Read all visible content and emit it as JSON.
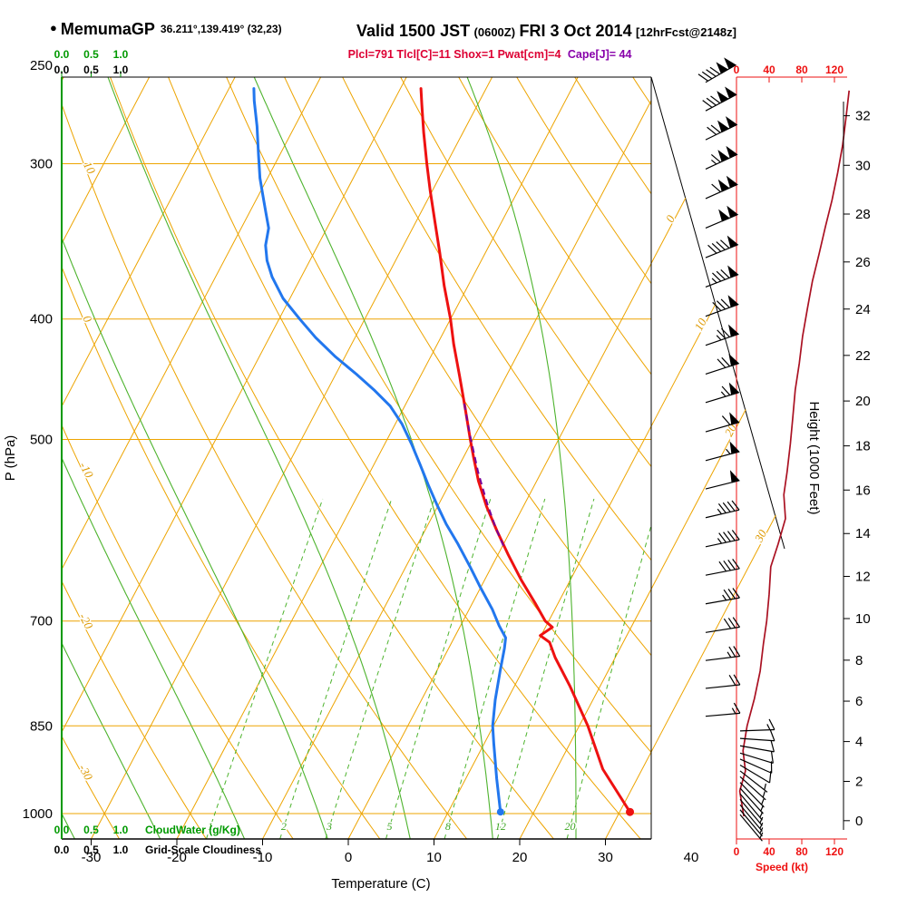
{
  "header": {
    "bullet": "●",
    "station": "MemumaGP",
    "coords": "36.211°,139.419° (32,23)",
    "valid_main": "Valid 1500 JST",
    "valid_z": "(0600Z)",
    "valid_date": "FRI 3 Oct 2014",
    "fcst": "[12hrFcst@2148z]",
    "indices_left": "Plcl=791 Tlcl[C]=11 Shox=1 Pwat[cm]=4",
    "indices_cape": "Cape[J]= 44"
  },
  "axes": {
    "pressure": {
      "title": "P (hPa)",
      "ticks": [
        250,
        300,
        400,
        500,
        700,
        850,
        1000
      ]
    },
    "temperature": {
      "title": "Temperature (C)",
      "ticks": [
        -30,
        -20,
        -10,
        0,
        10,
        20,
        30,
        40
      ]
    },
    "height": {
      "title": "Height (1000 Feet)",
      "ticks": [
        0,
        2,
        4,
        6,
        8,
        10,
        12,
        14,
        16,
        18,
        20,
        22,
        24,
        26,
        28,
        30,
        32
      ]
    },
    "speed": {
      "title": "Speed (kt)",
      "ticks": [
        0,
        40,
        80,
        120
      ]
    },
    "cloudwater": {
      "title": "CloudWater (g/Kg)",
      "ticks": [
        "0.0",
        "0.5",
        "1.0"
      ]
    },
    "cloudiness": {
      "title": "Grid-Scale Cloudiness",
      "ticks": [
        "0.0",
        "0.5",
        "1.0"
      ]
    }
  },
  "grid": {
    "isotherms": {
      "start": -80,
      "end": 30,
      "step": 10,
      "right_labels": [
        0,
        10,
        20,
        30
      ]
    },
    "dry_adiabats": {
      "values": [
        -30,
        -20,
        -10,
        0,
        10,
        20,
        30,
        40,
        50,
        60,
        70,
        80,
        90,
        100,
        110
      ],
      "labels": [
        10,
        0,
        -10,
        -20,
        -30
      ]
    },
    "moist_adiabats": {
      "values": [
        -45,
        -35,
        -25,
        -15,
        -5,
        5,
        15,
        25,
        35
      ]
    },
    "mixing_ratio": {
      "values": [
        1,
        2,
        3,
        5,
        8,
        12,
        20
      ]
    },
    "pressure_lines": [
      300,
      400,
      500,
      700,
      850,
      1000
    ]
  },
  "chart_data": {
    "type": "skewt-logp",
    "pressure_range_hpa": [
      1048,
      253
    ],
    "temperature_c": [
      [
        997,
        31.2
      ],
      [
        921,
        25.4
      ],
      [
        850,
        21.0
      ],
      [
        790,
        16.5
      ],
      [
        749,
        13.0
      ],
      [
        728,
        11.4
      ],
      [
        719,
        9.9
      ],
      [
        708,
        10.8
      ],
      [
        700,
        9.6
      ],
      [
        677,
        7.3
      ],
      [
        649,
        4.3
      ],
      [
        619,
        1.2
      ],
      [
        592,
        -1.6
      ],
      [
        566,
        -4.3
      ],
      [
        540,
        -6.8
      ],
      [
        517,
        -8.8
      ],
      [
        500,
        -10.3
      ],
      [
        472,
        -12.8
      ],
      [
        445,
        -15.4
      ],
      [
        419,
        -18.1
      ],
      [
        400,
        -20.0
      ],
      [
        376,
        -22.8
      ],
      [
        354,
        -25.3
      ],
      [
        334,
        -27.8
      ],
      [
        315,
        -30.3
      ],
      [
        300,
        -32.3
      ],
      [
        283,
        -34.6
      ],
      [
        269,
        -36.5
      ],
      [
        261,
        -37.6
      ]
    ],
    "dewpoint_c": [
      [
        997,
        16.1
      ],
      [
        937,
        13.6
      ],
      [
        878,
        11.1
      ],
      [
        850,
        9.9
      ],
      [
        810,
        8.6
      ],
      [
        768,
        7.4
      ],
      [
        736,
        6.5
      ],
      [
        722,
        6.0
      ],
      [
        706,
        4.5
      ],
      [
        685,
        2.7
      ],
      [
        658,
        0.0
      ],
      [
        633,
        -2.5
      ],
      [
        607,
        -5.3
      ],
      [
        585,
        -7.9
      ],
      [
        565,
        -10.1
      ],
      [
        544,
        -12.4
      ],
      [
        523,
        -14.7
      ],
      [
        504,
        -16.9
      ],
      [
        486,
        -19.2
      ],
      [
        470,
        -21.7
      ],
      [
        456,
        -24.6
      ],
      [
        443,
        -27.6
      ],
      [
        429,
        -31.1
      ],
      [
        414,
        -34.6
      ],
      [
        400,
        -37.6
      ],
      [
        385,
        -40.8
      ],
      [
        370,
        -43.4
      ],
      [
        359,
        -45.0
      ],
      [
        349,
        -46.1
      ],
      [
        338,
        -46.8
      ],
      [
        329,
        -48.0
      ],
      [
        318,
        -49.5
      ],
      [
        308,
        -50.9
      ],
      [
        295,
        -52.5
      ],
      [
        280,
        -54.4
      ],
      [
        267,
        -56.3
      ],
      [
        261,
        -57.1
      ]
    ],
    "parcel_c": [
      [
        468,
        -13.2
      ],
      [
        496,
        -10.6
      ],
      [
        531,
        -7.4
      ],
      [
        563,
        -4.4
      ],
      [
        589,
        -1.9
      ],
      [
        612,
        0.4
      ]
    ],
    "surface_temp_marker": [
      997,
      31.2
    ],
    "surface_dewpoint_marker": [
      997,
      16.1
    ],
    "wind_speed_kt": [
      [
        1005,
        9
      ],
      [
        959,
        4
      ],
      [
        924,
        11
      ],
      [
        890,
        8
      ],
      [
        850,
        13
      ],
      [
        808,
        22
      ],
      [
        768,
        29
      ],
      [
        730,
        33
      ],
      [
        700,
        37
      ],
      [
        666,
        40
      ],
      [
        633,
        42
      ],
      [
        607,
        51
      ],
      [
        579,
        60
      ],
      [
        554,
        58
      ],
      [
        531,
        62
      ],
      [
        504,
        66
      ],
      [
        480,
        69
      ],
      [
        456,
        72
      ],
      [
        434,
        77
      ],
      [
        413,
        81
      ],
      [
        392,
        87
      ],
      [
        373,
        93
      ],
      [
        355,
        101
      ],
      [
        337,
        109
      ],
      [
        321,
        117
      ],
      [
        305,
        124
      ],
      [
        290,
        130
      ],
      [
        276,
        134
      ],
      [
        262,
        138
      ]
    ],
    "wind_barbs": [
      [
        258,
        240,
        140
      ],
      [
        272,
        242,
        130
      ],
      [
        287,
        244,
        122
      ],
      [
        303,
        245,
        115
      ],
      [
        320,
        246,
        108
      ],
      [
        338,
        247,
        100
      ],
      [
        357,
        248,
        92
      ],
      [
        377,
        249,
        85
      ],
      [
        398,
        250,
        80
      ],
      [
        420,
        251,
        75
      ],
      [
        443,
        252,
        70
      ],
      [
        467,
        253,
        64
      ],
      [
        493,
        254,
        58
      ],
      [
        520,
        255,
        54
      ],
      [
        548,
        256,
        50
      ],
      [
        578,
        257,
        47
      ],
      [
        610,
        258,
        44
      ],
      [
        643,
        259,
        40
      ],
      [
        678,
        260,
        36
      ],
      [
        715,
        261,
        32
      ],
      [
        753,
        263,
        27
      ],
      [
        793,
        264,
        22
      ],
      [
        835,
        265,
        17
      ],
      [
        858,
        268,
        14
      ],
      [
        870,
        274,
        12
      ],
      [
        882,
        280,
        11
      ],
      [
        894,
        287,
        10
      ],
      [
        904,
        294,
        9
      ],
      [
        914,
        301,
        8
      ],
      [
        924,
        308,
        7
      ],
      [
        934,
        312,
        7
      ],
      [
        944,
        316,
        6
      ],
      [
        954,
        318,
        6
      ],
      [
        964,
        320,
        5
      ],
      [
        974,
        320,
        5
      ],
      [
        984,
        320,
        4
      ],
      [
        993,
        320,
        4
      ],
      [
        1002,
        320,
        3
      ]
    ]
  },
  "colors": {
    "isotherm": "#eda400",
    "dry_adiabat": "#eda400",
    "moist_adiabat": "#4db32d",
    "mixing_ratio": "#4db32d",
    "grid_label": "#dd9900",
    "temperature": "#ee1111",
    "dewpoint": "#2277ee",
    "parcel": "#770099",
    "speed_curve": "#aa1122",
    "speed_axis": "#ee1111",
    "green_axis": "#009900",
    "barb": "#000000",
    "frame": "#000000",
    "indices": "#dd0033",
    "cape": "#8800aa"
  }
}
